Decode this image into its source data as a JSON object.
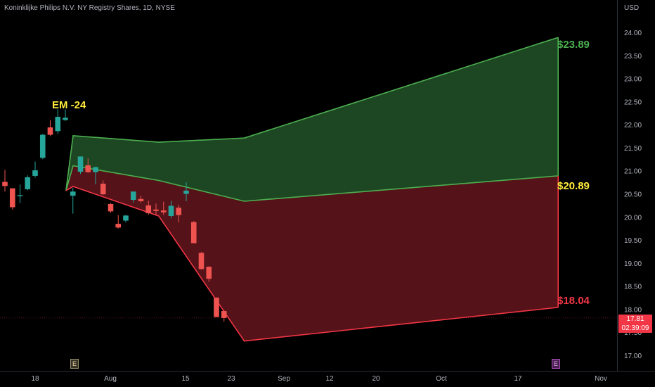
{
  "header": {
    "title": "Koninklijke Philips N.V. NY Registry Shares, 1D, NYSE",
    "currency": "USD"
  },
  "current_price": {
    "value": "17.81",
    "countdown": "02:39:09",
    "color": "#f23645"
  },
  "markers": {
    "earnings_left": "E",
    "earnings_right": "E"
  },
  "colors": {
    "up": "#26a69a",
    "down": "#ef5350",
    "upper_band": "#4caf50",
    "lower_band": "#f23645",
    "label_upper": "#4caf50",
    "label_mid": "#ffeb3b",
    "label_lower": "#f23645"
  },
  "chart_data": {
    "type": "candlestick",
    "title": "Koninklijke Philips N.V. NY Registry Shares, 1D, NYSE",
    "y_axis": {
      "unit": "USD",
      "ticks": [
        "24.00",
        "23.50",
        "23.00",
        "22.50",
        "22.00",
        "21.50",
        "21.00",
        "20.50",
        "20.00",
        "19.50",
        "19.00",
        "18.50",
        "18.00",
        "17.50",
        "17.00"
      ],
      "range": [
        16.9,
        24.6
      ]
    },
    "x_axis": {
      "ticks": [
        "18",
        "Aug",
        "15",
        "23",
        "Sep",
        "12",
        "20",
        "Oct",
        "17",
        "Nov"
      ]
    },
    "candles": [
      {
        "o": 20.76,
        "h": 21.02,
        "l": 20.55,
        "c": 20.67
      },
      {
        "o": 20.62,
        "h": 20.62,
        "l": 20.16,
        "c": 20.21
      },
      {
        "o": 20.45,
        "h": 20.7,
        "l": 20.3,
        "c": 20.47
      },
      {
        "o": 20.6,
        "h": 20.9,
        "l": 20.58,
        "c": 20.86
      },
      {
        "o": 20.89,
        "h": 21.2,
        "l": 20.85,
        "c": 21.01
      },
      {
        "o": 21.28,
        "h": 21.8,
        "l": 21.25,
        "c": 21.78
      },
      {
        "o": 21.94,
        "h": 22.1,
        "l": 21.75,
        "c": 21.78
      },
      {
        "o": 21.86,
        "h": 22.33,
        "l": 21.8,
        "c": 22.17
      },
      {
        "o": 22.1,
        "h": 22.33,
        "l": 22.08,
        "c": 22.15
      },
      {
        "o": 20.46,
        "h": 20.63,
        "l": 20.07,
        "c": 20.55
      },
      {
        "o": 20.98,
        "h": 21.31,
        "l": 20.93,
        "c": 21.31
      },
      {
        "o": 21.12,
        "h": 21.27,
        "l": 20.96,
        "c": 20.97
      },
      {
        "o": 20.97,
        "h": 21.09,
        "l": 20.71,
        "c": 21.08
      },
      {
        "o": 20.72,
        "h": 20.79,
        "l": 20.48,
        "c": 20.49
      },
      {
        "o": 20.28,
        "h": 20.3,
        "l": 20.09,
        "c": 20.12
      },
      {
        "o": 19.85,
        "h": 20.04,
        "l": 19.75,
        "c": 19.77
      },
      {
        "o": 19.92,
        "h": 20.04,
        "l": 19.88,
        "c": 20.03
      },
      {
        "o": 20.37,
        "h": 20.54,
        "l": 20.31,
        "c": 20.55
      },
      {
        "o": 20.39,
        "h": 20.46,
        "l": 20.31,
        "c": 20.34
      },
      {
        "o": 20.25,
        "h": 20.35,
        "l": 20.05,
        "c": 20.08
      },
      {
        "o": 20.16,
        "h": 20.29,
        "l": 20.04,
        "c": 20.13
      },
      {
        "o": 20.14,
        "h": 20.33,
        "l": 20.04,
        "c": 20.1
      },
      {
        "o": 20.02,
        "h": 20.35,
        "l": 19.97,
        "c": 20.24
      },
      {
        "o": 20.2,
        "h": 20.26,
        "l": 19.88,
        "c": 20.04
      },
      {
        "o": 20.5,
        "h": 20.75,
        "l": 20.34,
        "c": 20.57
      },
      {
        "o": 19.89,
        "h": 19.91,
        "l": 19.43,
        "c": 19.43
      },
      {
        "o": 19.22,
        "h": 19.24,
        "l": 18.86,
        "c": 18.87
      },
      {
        "o": 18.92,
        "h": 18.93,
        "l": 18.59,
        "c": 18.66
      },
      {
        "o": 18.25,
        "h": 18.26,
        "l": 17.83,
        "c": 17.83
      },
      {
        "o": 17.96,
        "h": 17.98,
        "l": 17.73,
        "c": 17.81
      }
    ],
    "expected_move": {
      "label": "EM -24",
      "upper": {
        "label": "$23.89",
        "value": 23.89,
        "points": [
          [
            0,
            21.76
          ],
          [
            1.2,
            21.62
          ],
          [
            2.4,
            21.71
          ],
          [
            6.8,
            23.89
          ]
        ]
      },
      "middle": {
        "label": "$20.89",
        "value": 20.89,
        "points": [
          [
            0,
            21.11
          ],
          [
            1.2,
            20.79
          ],
          [
            2.4,
            20.34
          ],
          [
            6.8,
            20.89
          ]
        ]
      },
      "lower": {
        "label": "$18.04",
        "value": 18.04,
        "points": [
          [
            0,
            20.66
          ],
          [
            1.2,
            20.02
          ],
          [
            2.4,
            17.31
          ],
          [
            6.8,
            18.04
          ]
        ]
      },
      "start": [
        -0.1,
        20.57
      ]
    },
    "grid": false
  }
}
